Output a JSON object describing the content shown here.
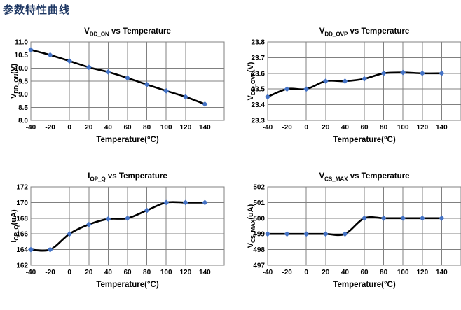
{
  "page": {
    "heading": "参数特性曲线"
  },
  "colors": {
    "heading_text": "#1F3864",
    "chart_line": "#000000",
    "chart_marker": "#4472C4",
    "chart_grid": "#808080",
    "chart_text": "#000000"
  },
  "chart_data": [
    {
      "type": "line",
      "marker": "diamond",
      "title": {
        "prefix": "V",
        "sub": "DD_ON",
        "suffix": " vs Temperature"
      },
      "ylabel": {
        "prefix": "V",
        "sub": "DD_ON",
        "suffix": "(V)"
      },
      "xlabel": "Temperature(°C)",
      "x": [
        -40,
        -20,
        0,
        20,
        40,
        60,
        80,
        100,
        120,
        140
      ],
      "x_ticks": [
        "-40",
        "-20",
        "0",
        "20",
        "40",
        "60",
        "80",
        "100",
        "120",
        "140"
      ],
      "values": [
        10.7,
        10.5,
        10.27,
        10.03,
        9.85,
        9.62,
        9.37,
        9.13,
        8.9,
        8.62
      ],
      "y_ticks": [
        "8.0",
        "8.5",
        "9.0",
        "9.5",
        "10.0",
        "10.5",
        "11.0"
      ],
      "ylim": [
        8.0,
        11.0
      ],
      "xlim": [
        -40,
        160
      ],
      "grid": true,
      "legend": "none"
    },
    {
      "type": "line",
      "marker": "diamond",
      "title": {
        "prefix": "V",
        "sub": "DD_OVP",
        "suffix": " vs Temperature"
      },
      "ylabel": {
        "prefix": "V",
        "sub": "DD_OVP",
        "suffix": "(V)"
      },
      "xlabel": "Temperature(°C)",
      "x": [
        -40,
        -20,
        0,
        20,
        40,
        60,
        80,
        100,
        120,
        140
      ],
      "x_ticks": [
        "-40",
        "-20",
        "0",
        "20",
        "40",
        "60",
        "80",
        "100",
        "120",
        "140"
      ],
      "values": [
        23.45,
        23.5,
        23.5,
        23.55,
        23.55,
        23.565,
        23.6,
        23.605,
        23.6,
        23.6
      ],
      "y_ticks": [
        "23.3",
        "23.4",
        "23.5",
        "23.6",
        "23.7",
        "23.8"
      ],
      "ylim": [
        23.3,
        23.8
      ],
      "xlim": [
        -40,
        160
      ],
      "grid": true,
      "legend": "none"
    },
    {
      "type": "line",
      "marker": "diamond",
      "title": {
        "prefix": "I",
        "sub": "OP_Q",
        "suffix": " vs Temperature"
      },
      "ylabel": {
        "prefix": "I",
        "sub": "OP_Q",
        "suffix": "(uA)"
      },
      "xlabel": "Temperature(°C)",
      "x": [
        -40,
        -20,
        0,
        20,
        40,
        60,
        80,
        100,
        120,
        140
      ],
      "x_ticks": [
        "-40",
        "-20",
        "0",
        "20",
        "40",
        "60",
        "80",
        "100",
        "120",
        "140"
      ],
      "values": [
        164,
        164,
        166,
        167.2,
        167.9,
        168,
        169,
        170,
        170,
        170
      ],
      "y_ticks": [
        "162",
        "164",
        "166",
        "168",
        "170",
        "172"
      ],
      "ylim": [
        162,
        172
      ],
      "xlim": [
        -40,
        160
      ],
      "grid": true,
      "legend": "none"
    },
    {
      "type": "line",
      "marker": "diamond",
      "title": {
        "prefix": "V",
        "sub": "CS_MAX",
        "suffix": " vs Temperature"
      },
      "ylabel": {
        "prefix": "V",
        "sub": "CS_MAX",
        "suffix": "(uA)"
      },
      "xlabel": "Temperature(°C)",
      "x": [
        -40,
        -20,
        0,
        20,
        40,
        60,
        80,
        100,
        120,
        140
      ],
      "x_ticks": [
        "-40",
        "-20",
        "0",
        "20",
        "40",
        "60",
        "80",
        "100",
        "120",
        "140"
      ],
      "values": [
        499,
        499,
        499,
        499,
        499,
        500,
        500,
        500,
        500,
        500
      ],
      "y_ticks": [
        "497",
        "498",
        "499",
        "500",
        "501",
        "502"
      ],
      "ylim": [
        497,
        502
      ],
      "xlim": [
        -40,
        160
      ],
      "grid": true,
      "legend": "none"
    }
  ]
}
